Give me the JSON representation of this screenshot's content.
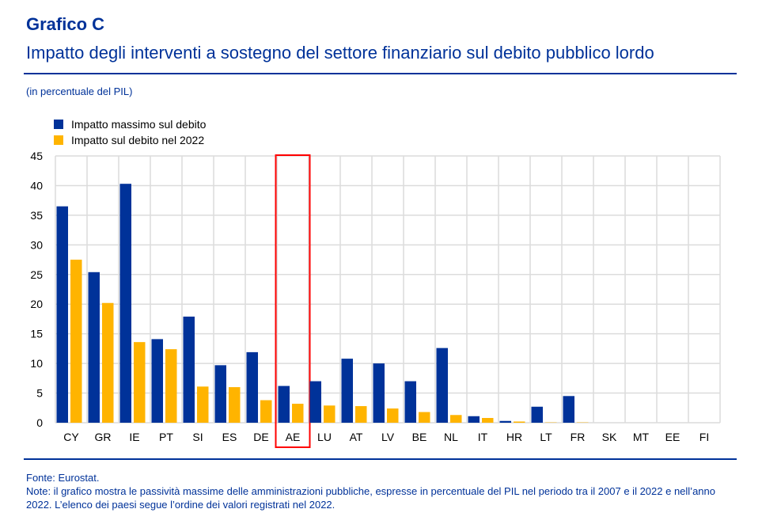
{
  "header": {
    "title": "Grafico C",
    "subtitle": "Impatto degli interventi a sostegno del settore finanziario sul debito pubblico lordo",
    "unit": "(in percentuale del PIL)"
  },
  "footer": {
    "source": "Fonte: Eurostat.",
    "note": "Note: il grafico mostra le passività massime delle amministrazioni pubbliche, espresse in percentuale del PIL nel periodo tra il 2007 e il 2022 e nell’anno 2022. L’elenco dei paesi segue l’ordine dei valori registrati nel 2022."
  },
  "chart_data": {
    "type": "bar",
    "categories": [
      "CY",
      "GR",
      "IE",
      "PT",
      "SI",
      "ES",
      "DE",
      "AE",
      "LU",
      "AT",
      "LV",
      "BE",
      "NL",
      "IT",
      "HR",
      "LT",
      "FR",
      "SK",
      "MT",
      "EE",
      "FI"
    ],
    "series": [
      {
        "name": "Impatto massimo sul debito",
        "color": "#003299",
        "values": [
          36.5,
          25.4,
          40.3,
          14.1,
          17.9,
          9.7,
          11.9,
          6.2,
          7.0,
          10.8,
          10.0,
          7.0,
          12.6,
          1.1,
          0.3,
          2.7,
          4.5,
          0,
          0,
          0,
          0
        ]
      },
      {
        "name": "Impatto sul debito nel 2022",
        "color": "#FFB400",
        "values": [
          27.5,
          20.2,
          13.6,
          12.4,
          6.1,
          6.0,
          3.8,
          3.2,
          2.9,
          2.8,
          2.4,
          1.8,
          1.3,
          0.8,
          0.2,
          0.05,
          0.05,
          0,
          0,
          0,
          0
        ]
      }
    ],
    "ylim": [
      0,
      45
    ],
    "yticks": [
      0,
      5,
      10,
      15,
      20,
      25,
      30,
      35,
      40,
      45
    ],
    "grid": true,
    "legend": "top-left",
    "highlight": {
      "category": "AE",
      "color": "#FF0000"
    }
  }
}
